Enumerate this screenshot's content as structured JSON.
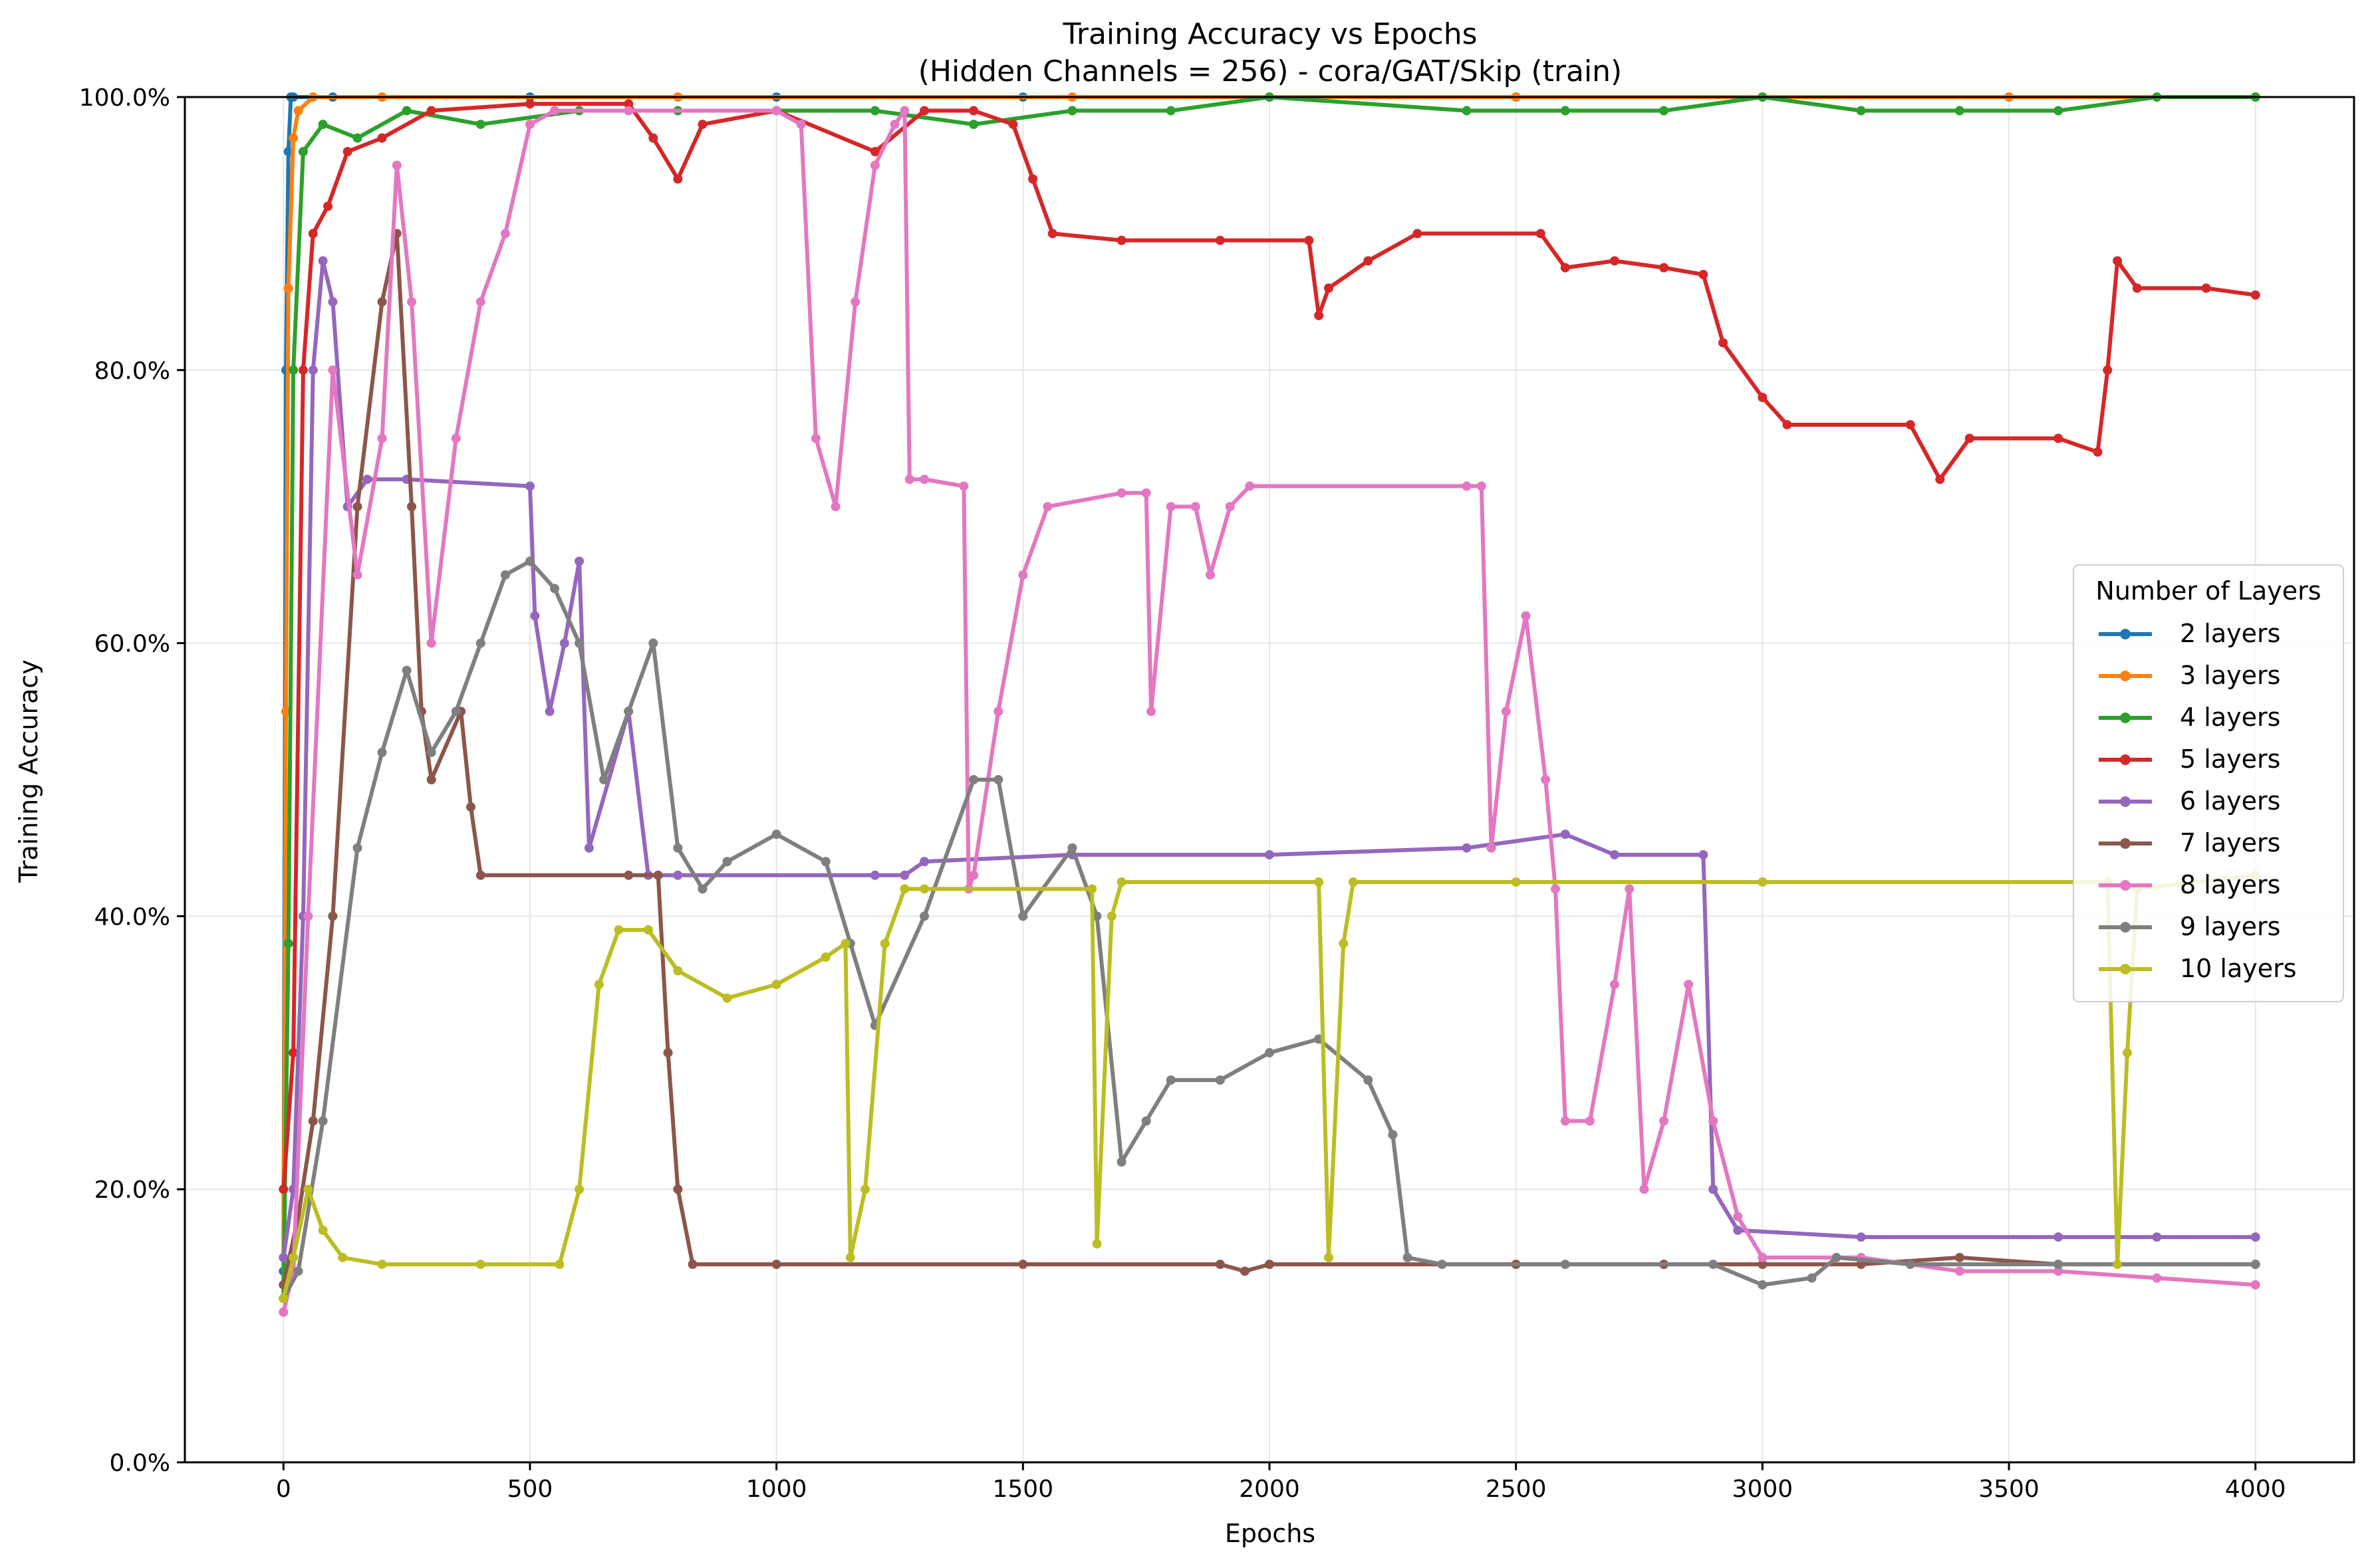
{
  "chart_data": {
    "type": "line",
    "title": "Training Accuracy vs Epochs",
    "subtitle": "(Hidden Channels = 256) - cora/GAT/Skip (train)",
    "xlabel": "Epochs",
    "ylabel": "Training Accuracy",
    "xlim": [
      -200,
      4200
    ],
    "ylim": [
      0,
      100
    ],
    "x_ticks": [
      0,
      500,
      1000,
      1500,
      2000,
      2500,
      3000,
      3500,
      4000
    ],
    "x_tick_labels": [
      "0",
      "500",
      "1000",
      "1500",
      "2000",
      "2500",
      "3000",
      "3500",
      "4000"
    ],
    "y_ticks": [
      0,
      20,
      40,
      60,
      80,
      100
    ],
    "y_tick_labels": [
      "0.0%",
      "20.0%",
      "40.0%",
      "60.0%",
      "80.0%",
      "100.0%"
    ],
    "grid": true,
    "legend_title": "Number of Layers",
    "legend_position": "center-right",
    "series": [
      {
        "name": "2 layers",
        "color": "#1f77b4",
        "points": [
          [
            0,
            14
          ],
          [
            5,
            80
          ],
          [
            10,
            96
          ],
          [
            15,
            100
          ],
          [
            20,
            100
          ],
          [
            100,
            100
          ],
          [
            500,
            100
          ],
          [
            1000,
            100
          ],
          [
            1500,
            100
          ],
          [
            2000,
            100
          ],
          [
            2500,
            100
          ],
          [
            3000,
            100
          ],
          [
            3500,
            100
          ],
          [
            4000,
            100
          ]
        ]
      },
      {
        "name": "3 layers",
        "color": "#ff7f0e",
        "points": [
          [
            0,
            13
          ],
          [
            5,
            55
          ],
          [
            10,
            86
          ],
          [
            20,
            97
          ],
          [
            30,
            99
          ],
          [
            60,
            100
          ],
          [
            200,
            100
          ],
          [
            800,
            100
          ],
          [
            1600,
            100
          ],
          [
            2000,
            100
          ],
          [
            2500,
            100
          ],
          [
            3000,
            100
          ],
          [
            3500,
            100
          ],
          [
            4000,
            100
          ]
        ]
      },
      {
        "name": "4 layers",
        "color": "#2ca02c",
        "points": [
          [
            0,
            12
          ],
          [
            10,
            38
          ],
          [
            20,
            80
          ],
          [
            40,
            96
          ],
          [
            80,
            98
          ],
          [
            150,
            97
          ],
          [
            250,
            99
          ],
          [
            400,
            98
          ],
          [
            600,
            99
          ],
          [
            800,
            99
          ],
          [
            1000,
            99
          ],
          [
            1200,
            99
          ],
          [
            1400,
            98
          ],
          [
            1600,
            99
          ],
          [
            1800,
            99
          ],
          [
            2000,
            100
          ],
          [
            2400,
            99
          ],
          [
            2600,
            99
          ],
          [
            2800,
            99
          ],
          [
            3000,
            100
          ],
          [
            3200,
            99
          ],
          [
            3400,
            99
          ],
          [
            3600,
            99
          ],
          [
            3800,
            100
          ],
          [
            4000,
            100
          ]
        ]
      },
      {
        "name": "5 layers",
        "color": "#d62728",
        "points": [
          [
            0,
            20
          ],
          [
            20,
            30
          ],
          [
            40,
            80
          ],
          [
            60,
            90
          ],
          [
            90,
            92
          ],
          [
            130,
            96
          ],
          [
            200,
            97
          ],
          [
            300,
            99
          ],
          [
            500,
            99.5
          ],
          [
            700,
            99.5
          ],
          [
            750,
            97
          ],
          [
            800,
            94
          ],
          [
            850,
            98
          ],
          [
            1000,
            99
          ],
          [
            1200,
            96
          ],
          [
            1300,
            99
          ],
          [
            1400,
            99
          ],
          [
            1480,
            98
          ],
          [
            1520,
            94
          ],
          [
            1560,
            90
          ],
          [
            1700,
            89.5
          ],
          [
            1900,
            89.5
          ],
          [
            2080,
            89.5
          ],
          [
            2100,
            84
          ],
          [
            2120,
            86
          ],
          [
            2200,
            88
          ],
          [
            2300,
            90
          ],
          [
            2550,
            90
          ],
          [
            2600,
            87.5
          ],
          [
            2700,
            88
          ],
          [
            2800,
            87.5
          ],
          [
            2880,
            87
          ],
          [
            2920,
            82
          ],
          [
            3000,
            78
          ],
          [
            3050,
            76
          ],
          [
            3300,
            76
          ],
          [
            3360,
            72
          ],
          [
            3420,
            75
          ],
          [
            3600,
            75
          ],
          [
            3680,
            74
          ],
          [
            3700,
            80
          ],
          [
            3720,
            88
          ],
          [
            3760,
            86
          ],
          [
            3900,
            86
          ],
          [
            4000,
            85.5
          ]
        ]
      },
      {
        "name": "6 layers",
        "color": "#9467bd",
        "points": [
          [
            0,
            15
          ],
          [
            20,
            20
          ],
          [
            40,
            40
          ],
          [
            60,
            80
          ],
          [
            80,
            88
          ],
          [
            100,
            85
          ],
          [
            130,
            70
          ],
          [
            170,
            72
          ],
          [
            250,
            72
          ],
          [
            500,
            71.5
          ],
          [
            510,
            62
          ],
          [
            540,
            55
          ],
          [
            570,
            60
          ],
          [
            600,
            66
          ],
          [
            620,
            45
          ],
          [
            700,
            55
          ],
          [
            740,
            43
          ],
          [
            800,
            43
          ],
          [
            1200,
            43
          ],
          [
            1260,
            43
          ],
          [
            1300,
            44
          ],
          [
            1600,
            44.5
          ],
          [
            2000,
            44.5
          ],
          [
            2400,
            45
          ],
          [
            2600,
            46
          ],
          [
            2700,
            44.5
          ],
          [
            2880,
            44.5
          ],
          [
            2900,
            20
          ],
          [
            2950,
            17
          ],
          [
            3200,
            16.5
          ],
          [
            3600,
            16.5
          ],
          [
            3800,
            16.5
          ],
          [
            4000,
            16.5
          ]
        ]
      },
      {
        "name": "7 layers",
        "color": "#8c564b",
        "points": [
          [
            0,
            13
          ],
          [
            30,
            18
          ],
          [
            60,
            25
          ],
          [
            100,
            40
          ],
          [
            150,
            70
          ],
          [
            200,
            85
          ],
          [
            230,
            90
          ],
          [
            260,
            70
          ],
          [
            280,
            55
          ],
          [
            300,
            50
          ],
          [
            360,
            55
          ],
          [
            380,
            48
          ],
          [
            400,
            43
          ],
          [
            700,
            43
          ],
          [
            760,
            43
          ],
          [
            780,
            30
          ],
          [
            800,
            20
          ],
          [
            830,
            14.5
          ],
          [
            1000,
            14.5
          ],
          [
            1500,
            14.5
          ],
          [
            1900,
            14.5
          ],
          [
            1950,
            14
          ],
          [
            2000,
            14.5
          ],
          [
            2500,
            14.5
          ],
          [
            2800,
            14.5
          ],
          [
            3000,
            14.5
          ],
          [
            3200,
            14.5
          ],
          [
            3400,
            15
          ],
          [
            3600,
            14.5
          ],
          [
            4000,
            14.5
          ]
        ]
      },
      {
        "name": "8 layers",
        "color": "#e377c2",
        "points": [
          [
            0,
            11
          ],
          [
            20,
            14
          ],
          [
            50,
            40
          ],
          [
            100,
            80
          ],
          [
            150,
            65
          ],
          [
            200,
            75
          ],
          [
            230,
            95
          ],
          [
            260,
            85
          ],
          [
            300,
            60
          ],
          [
            350,
            75
          ],
          [
            400,
            85
          ],
          [
            450,
            90
          ],
          [
            500,
            98
          ],
          [
            550,
            99
          ],
          [
            700,
            99
          ],
          [
            1000,
            99
          ],
          [
            1050,
            98
          ],
          [
            1080,
            75
          ],
          [
            1120,
            70
          ],
          [
            1160,
            85
          ],
          [
            1200,
            95
          ],
          [
            1240,
            98
          ],
          [
            1260,
            99
          ],
          [
            1270,
            72
          ],
          [
            1300,
            72
          ],
          [
            1380,
            71.5
          ],
          [
            1390,
            42
          ],
          [
            1400,
            43
          ],
          [
            1450,
            55
          ],
          [
            1500,
            65
          ],
          [
            1550,
            70
          ],
          [
            1700,
            71
          ],
          [
            1750,
            71
          ],
          [
            1760,
            55
          ],
          [
            1800,
            70
          ],
          [
            1850,
            70
          ],
          [
            1880,
            65
          ],
          [
            1920,
            70
          ],
          [
            1960,
            71.5
          ],
          [
            2400,
            71.5
          ],
          [
            2430,
            71.5
          ],
          [
            2450,
            45
          ],
          [
            2480,
            55
          ],
          [
            2520,
            62
          ],
          [
            2560,
            50
          ],
          [
            2580,
            42
          ],
          [
            2600,
            25
          ],
          [
            2650,
            25
          ],
          [
            2700,
            35
          ],
          [
            2730,
            42
          ],
          [
            2760,
            20
          ],
          [
            2800,
            25
          ],
          [
            2850,
            35
          ],
          [
            2900,
            25
          ],
          [
            2950,
            18
          ],
          [
            3000,
            15
          ],
          [
            3200,
            15
          ],
          [
            3400,
            14
          ],
          [
            3600,
            14
          ],
          [
            3800,
            13.5
          ],
          [
            4000,
            13
          ]
        ]
      },
      {
        "name": "9 layers",
        "color": "#7f7f7f",
        "points": [
          [
            0,
            12
          ],
          [
            30,
            14
          ],
          [
            80,
            25
          ],
          [
            150,
            45
          ],
          [
            200,
            52
          ],
          [
            250,
            58
          ],
          [
            300,
            52
          ],
          [
            350,
            55
          ],
          [
            400,
            60
          ],
          [
            450,
            65
          ],
          [
            500,
            66
          ],
          [
            550,
            64
          ],
          [
            600,
            60
          ],
          [
            650,
            50
          ],
          [
            700,
            55
          ],
          [
            750,
            60
          ],
          [
            800,
            45
          ],
          [
            850,
            42
          ],
          [
            900,
            44
          ],
          [
            1000,
            46
          ],
          [
            1100,
            44
          ],
          [
            1150,
            38
          ],
          [
            1200,
            32
          ],
          [
            1300,
            40
          ],
          [
            1400,
            50
          ],
          [
            1450,
            50
          ],
          [
            1500,
            40
          ],
          [
            1600,
            45
          ],
          [
            1650,
            40
          ],
          [
            1700,
            22
          ],
          [
            1750,
            25
          ],
          [
            1800,
            28
          ],
          [
            1900,
            28
          ],
          [
            2000,
            30
          ],
          [
            2100,
            31
          ],
          [
            2200,
            28
          ],
          [
            2250,
            24
          ],
          [
            2280,
            15
          ],
          [
            2350,
            14.5
          ],
          [
            2600,
            14.5
          ],
          [
            2900,
            14.5
          ],
          [
            3000,
            13
          ],
          [
            3100,
            13.5
          ],
          [
            3150,
            15
          ],
          [
            3300,
            14.5
          ],
          [
            3600,
            14.5
          ],
          [
            4000,
            14.5
          ]
        ]
      },
      {
        "name": "10 layers",
        "color": "#bcbd22",
        "points": [
          [
            0,
            12
          ],
          [
            20,
            15
          ],
          [
            50,
            20
          ],
          [
            80,
            17
          ],
          [
            120,
            15
          ],
          [
            200,
            14.5
          ],
          [
            400,
            14.5
          ],
          [
            560,
            14.5
          ],
          [
            600,
            20
          ],
          [
            640,
            35
          ],
          [
            680,
            39
          ],
          [
            740,
            39
          ],
          [
            800,
            36
          ],
          [
            900,
            34
          ],
          [
            1000,
            35
          ],
          [
            1100,
            37
          ],
          [
            1140,
            38
          ],
          [
            1150,
            15
          ],
          [
            1180,
            20
          ],
          [
            1220,
            38
          ],
          [
            1260,
            42
          ],
          [
            1300,
            42
          ],
          [
            1640,
            42
          ],
          [
            1650,
            16
          ],
          [
            1680,
            40
          ],
          [
            1700,
            42.5
          ],
          [
            2100,
            42.5
          ],
          [
            2120,
            15
          ],
          [
            2150,
            38
          ],
          [
            2170,
            42.5
          ],
          [
            2500,
            42.5
          ],
          [
            3000,
            42.5
          ],
          [
            3700,
            42.5
          ],
          [
            3720,
            14.5
          ],
          [
            3740,
            30
          ],
          [
            3760,
            42
          ],
          [
            4000,
            43
          ]
        ]
      }
    ]
  }
}
